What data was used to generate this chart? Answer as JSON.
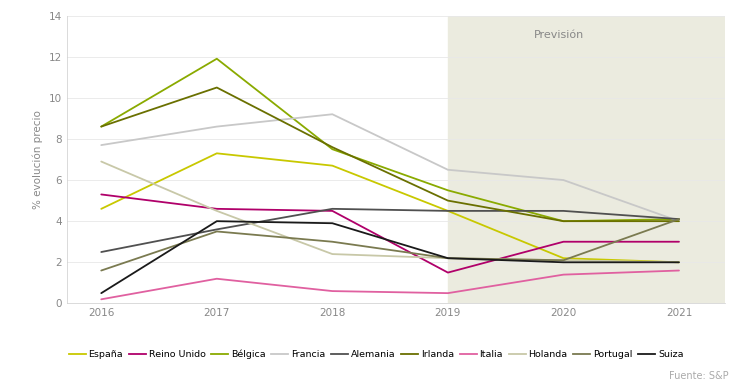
{
  "years": [
    2016,
    2017,
    2018,
    2019,
    2020,
    2021
  ],
  "series": {
    "España": {
      "values": [
        4.6,
        7.3,
        6.7,
        4.5,
        2.2,
        2.0
      ],
      "color": "#c8c800",
      "linewidth": 1.3
    },
    "Reino Unido": {
      "values": [
        5.3,
        4.6,
        4.5,
        1.5,
        3.0,
        3.0
      ],
      "color": "#b0006a",
      "linewidth": 1.3
    },
    "Bélgica": {
      "values": [
        8.6,
        11.9,
        7.5,
        5.5,
        4.0,
        4.1
      ],
      "color": "#8aaa00",
      "linewidth": 1.3
    },
    "Francia": {
      "values": [
        7.7,
        8.6,
        9.2,
        6.5,
        6.0,
        4.0
      ],
      "color": "#c8c8c8",
      "linewidth": 1.3
    },
    "Alemania": {
      "values": [
        2.5,
        3.6,
        4.6,
        4.5,
        4.5,
        4.1
      ],
      "color": "#505050",
      "linewidth": 1.3
    },
    "Irlanda": {
      "values": [
        8.6,
        10.5,
        7.6,
        5.0,
        4.0,
        4.0
      ],
      "color": "#6a7000",
      "linewidth": 1.3
    },
    "Italia": {
      "values": [
        0.2,
        1.2,
        0.6,
        0.5,
        1.4,
        1.6
      ],
      "color": "#e060a0",
      "linewidth": 1.3
    },
    "Holanda": {
      "values": [
        6.9,
        4.5,
        2.4,
        2.2,
        2.1,
        2.0
      ],
      "color": "#c8c8a8",
      "linewidth": 1.3
    },
    "Portugal": {
      "values": [
        1.6,
        3.5,
        3.0,
        2.2,
        2.1,
        4.1
      ],
      "color": "#7a7a50",
      "linewidth": 1.3
    },
    "Suiza": {
      "values": [
        0.5,
        4.0,
        3.9,
        2.2,
        2.0,
        2.0
      ],
      "color": "#1a1a1a",
      "linewidth": 1.3
    }
  },
  "prevision_start": 2019,
  "prevision_label": "Previsión",
  "ylabel": "% evolución precio",
  "ylim": [
    0,
    14
  ],
  "yticks": [
    0,
    2,
    4,
    6,
    8,
    10,
    12,
    14
  ],
  "xlim": [
    2015.7,
    2021.4
  ],
  "xticks": [
    2016,
    2017,
    2018,
    2019,
    2020,
    2021
  ],
  "source": "Fuente: S&P",
  "bg_color": "#ffffff",
  "prevision_bg": "#ebebdf"
}
